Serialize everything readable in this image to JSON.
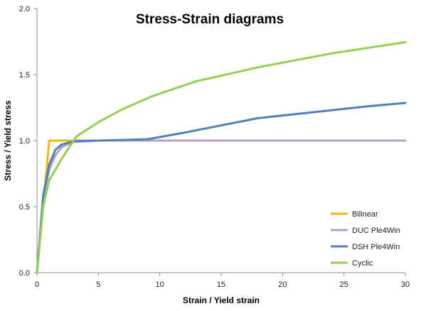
{
  "chart_data": {
    "type": "line",
    "title": "Stress-Strain diagrams",
    "xlabel": "Strain / Yield strain",
    "ylabel": "Stress / Yield stress",
    "xlim": [
      0,
      30
    ],
    "ylim": [
      0,
      2.0
    ],
    "x_ticks": [
      0,
      5,
      10,
      15,
      20,
      25,
      30
    ],
    "x_tick_labels": [
      "0",
      "5",
      "10",
      "15",
      "20",
      "25",
      "30"
    ],
    "y_ticks": [
      0,
      0.5,
      1.0,
      1.5,
      2.0
    ],
    "y_tick_labels": [
      "0.0",
      "0.5",
      "1.0",
      "1.5",
      "2.0"
    ],
    "grid": false,
    "legend_position": "bottom-right",
    "series": [
      {
        "name": "Bilinear",
        "color": "#f5b800",
        "points": [
          [
            0,
            0
          ],
          [
            1,
            1.0
          ],
          [
            2.5,
            1.0
          ],
          [
            30,
            1.0
          ]
        ]
      },
      {
        "name": "DUC Ple4Win",
        "color": "#b3a2c7",
        "points": [
          [
            0,
            0
          ],
          [
            0.5,
            0.55
          ],
          [
            1.0,
            0.78
          ],
          [
            1.5,
            0.89
          ],
          [
            2.0,
            0.95
          ],
          [
            3.0,
            0.99
          ],
          [
            5.0,
            1.0
          ],
          [
            10.0,
            1.0
          ],
          [
            20.0,
            1.0
          ],
          [
            30.0,
            1.0
          ]
        ]
      },
      {
        "name": "DSH Ple4Win",
        "color": "#4f81bd",
        "points": [
          [
            0,
            0
          ],
          [
            0.5,
            0.58
          ],
          [
            1.0,
            0.82
          ],
          [
            1.5,
            0.93
          ],
          [
            2.0,
            0.97
          ],
          [
            3.0,
            0.995
          ],
          [
            5.0,
            1.0
          ],
          [
            9.0,
            1.01
          ],
          [
            12.0,
            1.06
          ],
          [
            18.0,
            1.17
          ],
          [
            27.0,
            1.26
          ],
          [
            30.0,
            1.285
          ]
        ]
      },
      {
        "name": "Cyclic",
        "color": "#92d050",
        "points": [
          [
            0,
            0
          ],
          [
            0.5,
            0.5
          ],
          [
            1.0,
            0.7
          ],
          [
            2.0,
            0.86
          ],
          [
            3.2,
            1.03
          ],
          [
            5.0,
            1.14
          ],
          [
            7.0,
            1.24
          ],
          [
            9.5,
            1.34
          ],
          [
            13.0,
            1.45
          ],
          [
            18.0,
            1.555
          ],
          [
            24.0,
            1.66
          ],
          [
            30.0,
            1.745
          ]
        ]
      }
    ]
  }
}
